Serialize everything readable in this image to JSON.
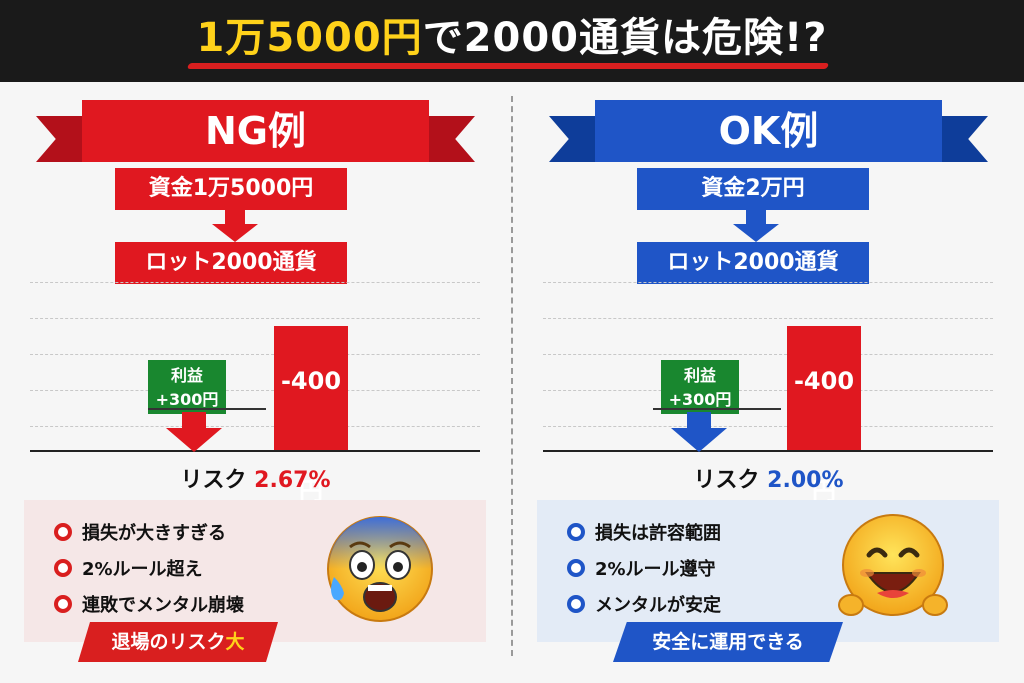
{
  "header": {
    "title_part1": "1万5000円",
    "title_part2": "で2000通貨は危険!?"
  },
  "ng": {
    "banner": "NG例",
    "fund": "資金1万5000円",
    "lot": "ロット2000通貨",
    "profit_label": "利益",
    "profit_value": "+300円",
    "loss_value": "-400円",
    "risk_label": "リスク",
    "risk_value": "2.67%",
    "bullets": [
      "損失が大きすぎる",
      "2%ルール超え",
      "連敗でメンタル崩壊"
    ],
    "tagline_main": "退場のリスク",
    "tagline_accent": "大",
    "profit_amount": 300,
    "loss_amount": 400
  },
  "ok": {
    "banner": "OK例",
    "fund": "資金2万円",
    "lot": "ロット2000通貨",
    "profit_label": "利益",
    "profit_value": "+300円",
    "loss_value": "-400円",
    "risk_label": "リスク",
    "risk_value": "2.00%",
    "bullets": [
      "損失は許容範囲",
      "2%ルール遵守",
      "メンタルが安定"
    ],
    "tagline": "安全に運用できる",
    "profit_amount": 300,
    "loss_amount": 400
  },
  "colors": {
    "ng_red": "#e01820",
    "ok_blue": "#1f55c7",
    "profit_green": "#19872f",
    "title_yellow": "#ffd21a"
  },
  "icons": {
    "ng_face": "scared-face-icon",
    "ok_face": "happy-face-icon"
  }
}
